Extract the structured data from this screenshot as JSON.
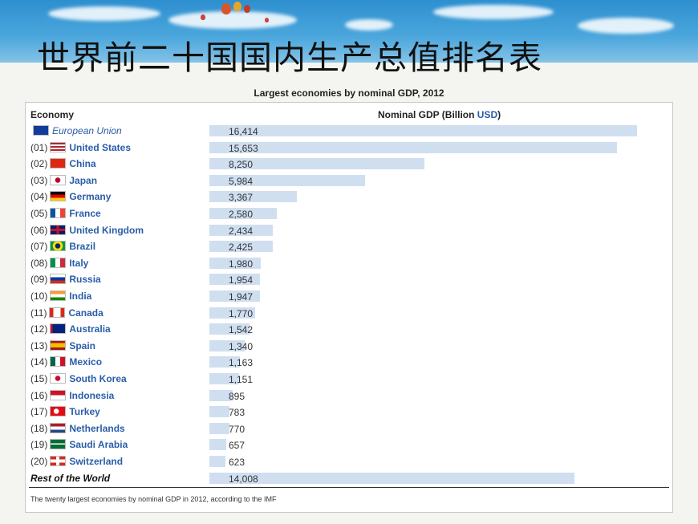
{
  "slide_title": "世界前二十国国内生产总值排名表",
  "chart_data": {
    "type": "bar",
    "orientation": "horizontal",
    "title": "Largest economies by nominal GDP, 2012",
    "category_header": "Economy",
    "value_header_prefix": "Nominal GDP (Billion ",
    "value_header_unit": "USD",
    "value_header_suffix": ")",
    "caption": "The twenty largest economies by nominal GDP in 2012, according to the IMF",
    "xlim": [
      0,
      16414
    ],
    "rows": [
      {
        "rank": "",
        "name": "European Union",
        "value": 16414,
        "label": "16,414",
        "flag": "eu",
        "style": "italic-link"
      },
      {
        "rank": "(01)",
        "name": "United States",
        "value": 15653,
        "label": "15,653",
        "flag": "us",
        "style": "link"
      },
      {
        "rank": "(02)",
        "name": "China",
        "value": 8250,
        "label": "8,250",
        "flag": "cn",
        "style": "link"
      },
      {
        "rank": "(03)",
        "name": "Japan",
        "value": 5984,
        "label": "5,984",
        "flag": "jp",
        "style": "link"
      },
      {
        "rank": "(04)",
        "name": "Germany",
        "value": 3367,
        "label": "3,367",
        "flag": "de",
        "style": "link"
      },
      {
        "rank": "(05)",
        "name": "France",
        "value": 2580,
        "label": "2,580",
        "flag": "fr",
        "style": "link"
      },
      {
        "rank": "(06)",
        "name": "United Kingdom",
        "value": 2434,
        "label": "2,434",
        "flag": "gb",
        "style": "link"
      },
      {
        "rank": "(07)",
        "name": "Brazil",
        "value": 2425,
        "label": "2,425",
        "flag": "br",
        "style": "link"
      },
      {
        "rank": "(08)",
        "name": "Italy",
        "value": 1980,
        "label": "1,980",
        "flag": "it",
        "style": "link"
      },
      {
        "rank": "(09)",
        "name": "Russia",
        "value": 1954,
        "label": "1,954",
        "flag": "ru",
        "style": "link"
      },
      {
        "rank": "(10)",
        "name": "India",
        "value": 1947,
        "label": "1,947",
        "flag": "in",
        "style": "link"
      },
      {
        "rank": "(11)",
        "name": "Canada",
        "value": 1770,
        "label": "1,770",
        "flag": "ca",
        "style": "link"
      },
      {
        "rank": "(12)",
        "name": "Australia",
        "value": 1542,
        "label": "1,542",
        "flag": "au",
        "style": "link"
      },
      {
        "rank": "(13)",
        "name": "Spain",
        "value": 1340,
        "label": "1,340",
        "flag": "es",
        "style": "link"
      },
      {
        "rank": "(14)",
        "name": "Mexico",
        "value": 1163,
        "label": "1,163",
        "flag": "mx",
        "style": "link"
      },
      {
        "rank": "(15)",
        "name": "South Korea",
        "value": 1151,
        "label": "1,151",
        "flag": "kr",
        "style": "link"
      },
      {
        "rank": "(16)",
        "name": "Indonesia",
        "value": 895,
        "label": "895",
        "flag": "id",
        "style": "link"
      },
      {
        "rank": "(17)",
        "name": "Turkey",
        "value": 783,
        "label": "783",
        "flag": "tr",
        "style": "link"
      },
      {
        "rank": "(18)",
        "name": "Netherlands",
        "value": 770,
        "label": "770",
        "flag": "nl",
        "style": "link"
      },
      {
        "rank": "(19)",
        "name": "Saudi Arabia",
        "value": 657,
        "label": "657",
        "flag": "sa",
        "style": "link"
      },
      {
        "rank": "(20)",
        "name": "Switzerland",
        "value": 623,
        "label": "623",
        "flag": "ch",
        "style": "link"
      },
      {
        "rank": "",
        "name": "Rest of the World",
        "value": 14008,
        "label": "14,008",
        "flag": "",
        "style": "bold-italic"
      }
    ]
  }
}
